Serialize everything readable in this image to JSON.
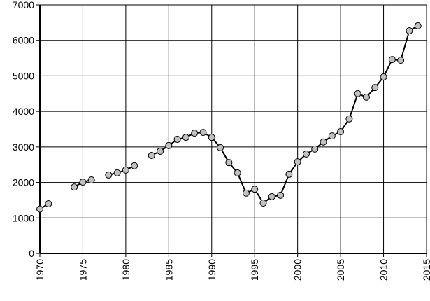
{
  "chart_data": {
    "type": "line",
    "x": [
      1970,
      1971,
      1972,
      1973,
      1974,
      1975,
      1976,
      1977,
      1978,
      1979,
      1980,
      1981,
      1982,
      1983,
      1984,
      1985,
      1986,
      1987,
      1988,
      1989,
      1990,
      1991,
      1992,
      1993,
      1994,
      1995,
      1996,
      1997,
      1998,
      1999,
      2000,
      2001,
      2002,
      2003,
      2004,
      2005,
      2006,
      2007,
      2008,
      2009,
      2010,
      2011,
      2012,
      2013,
      2014
    ],
    "series": [
      {
        "color": "#000000",
        "marker_color": "#c0c0c0",
        "values": [
          1250,
          1400,
          null,
          null,
          1870,
          2010,
          2070,
          null,
          2210,
          2270,
          2350,
          2470,
          null,
          2760,
          2880,
          3040,
          3215,
          3270,
          3390,
          3410,
          3270,
          2980,
          2560,
          2270,
          1700,
          1810,
          1420,
          1600,
          1640,
          2230,
          2580,
          2800,
          2940,
          3140,
          3310,
          3430,
          3790,
          4500,
          4400,
          4670,
          4970,
          5460,
          5440,
          6270,
          6410
        ]
      }
    ],
    "xlim": [
      1970,
      2015
    ],
    "xticks": [
      1970,
      1975,
      1980,
      1985,
      1990,
      1995,
      2000,
      2005,
      2010,
      2015
    ],
    "ylim": [
      0,
      7000
    ],
    "yticks": [
      0,
      1000,
      2000,
      3000,
      4000,
      5000,
      6000,
      7000
    ],
    "grid": true
  }
}
